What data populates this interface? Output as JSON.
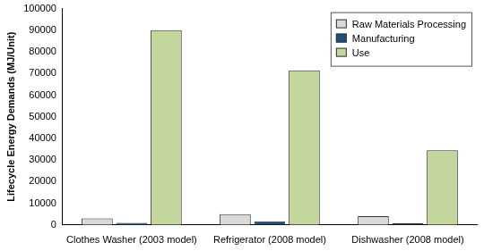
{
  "chart_data": {
    "type": "bar",
    "y_label": "Lifecycle Energy Demands (MJ/Unit)",
    "categories": [
      "Clothes Washer (2003 model)",
      "Refrigerator (2008 model)",
      "Dishwasher (2008 model)"
    ],
    "series": [
      {
        "name": "Raw Materials Processing",
        "color": "#d9d9d9",
        "values": [
          3000,
          5000,
          4000
        ]
      },
      {
        "name": "Manufacturing",
        "color": "#1f4e79",
        "values": [
          1000,
          1700,
          700
        ]
      },
      {
        "name": "Use",
        "color": "#c3d69b",
        "values": [
          90000,
          71500,
          34500
        ]
      }
    ],
    "ylim": [
      0,
      100000
    ],
    "yticks": [
      0,
      10000,
      20000,
      30000,
      40000,
      50000,
      60000,
      70000,
      80000,
      90000,
      100000
    ],
    "grid": false,
    "legend": "upper right"
  }
}
